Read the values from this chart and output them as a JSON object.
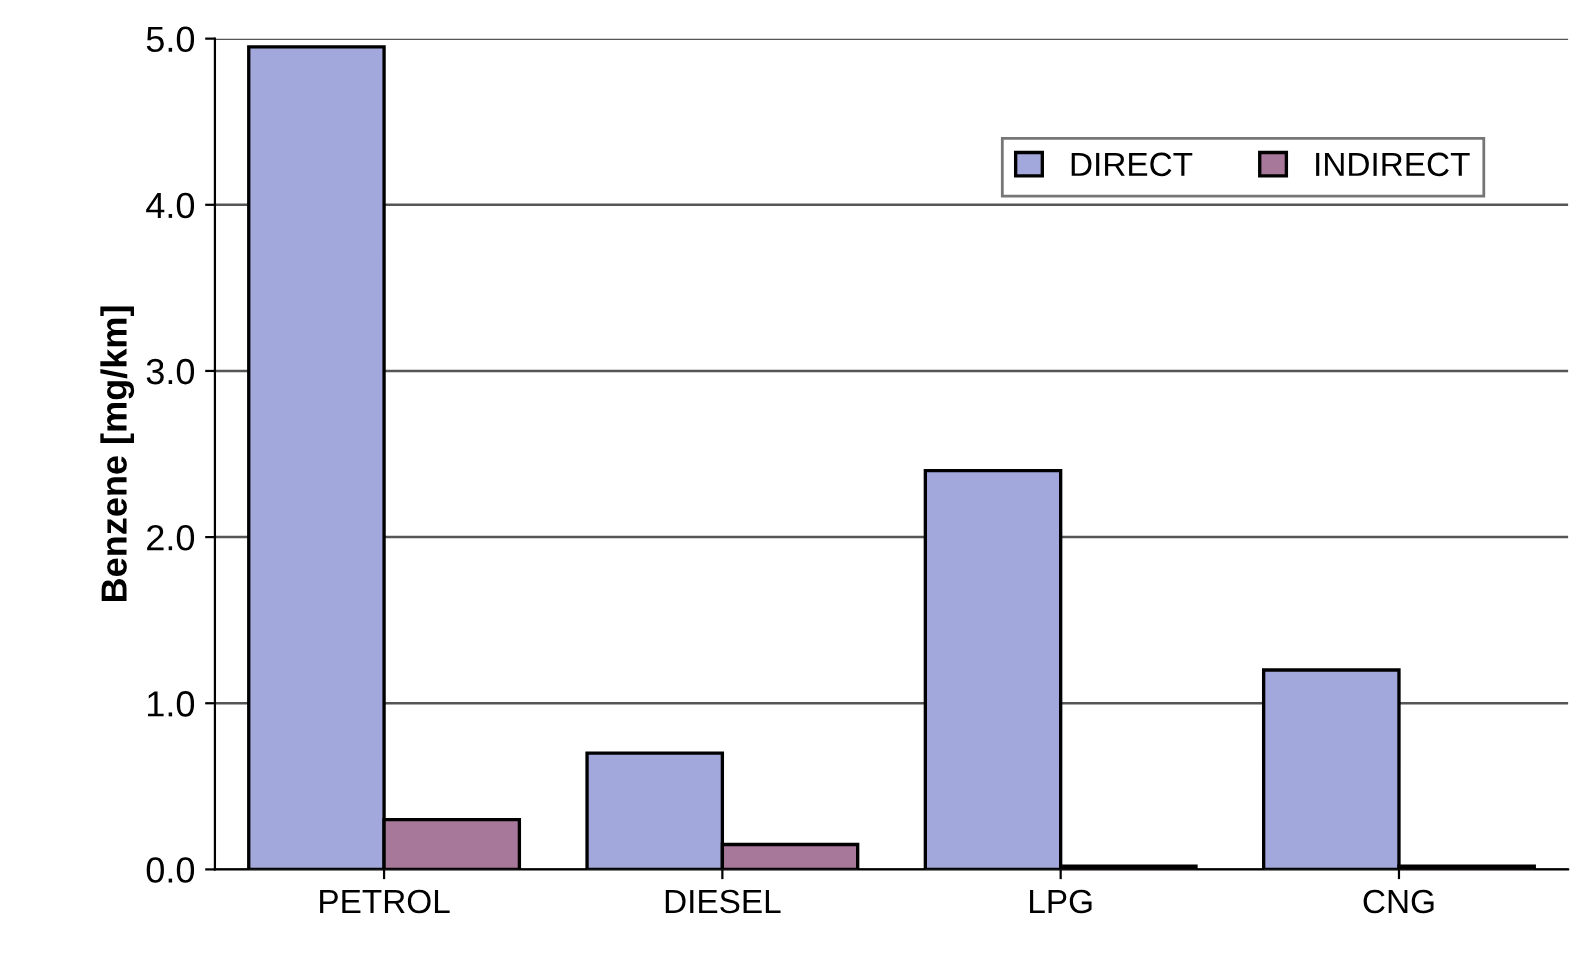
{
  "chart_data": {
    "type": "bar",
    "ylabel": "Benzene [mg/km]",
    "categories": [
      "PETROL",
      "DIESEL",
      "LPG",
      "CNG"
    ],
    "series": [
      {
        "name": "DIRECT",
        "color": "#a3a8dc",
        "values": [
          4.95,
          0.7,
          2.4,
          1.2
        ]
      },
      {
        "name": "INDIRECT",
        "color": "#a8789a",
        "values": [
          0.3,
          0.15,
          0.02,
          0.02
        ]
      }
    ],
    "ylim": [
      0,
      5
    ],
    "yticks": [
      {
        "value": 0,
        "label": "0.0"
      },
      {
        "value": 1,
        "label": "1.0"
      },
      {
        "value": 2,
        "label": "2.0"
      },
      {
        "value": 3,
        "label": "3.0"
      },
      {
        "value": 4,
        "label": "4.0"
      },
      {
        "value": 5,
        "label": "5.0"
      }
    ],
    "grid": "y",
    "legend": "top right"
  }
}
